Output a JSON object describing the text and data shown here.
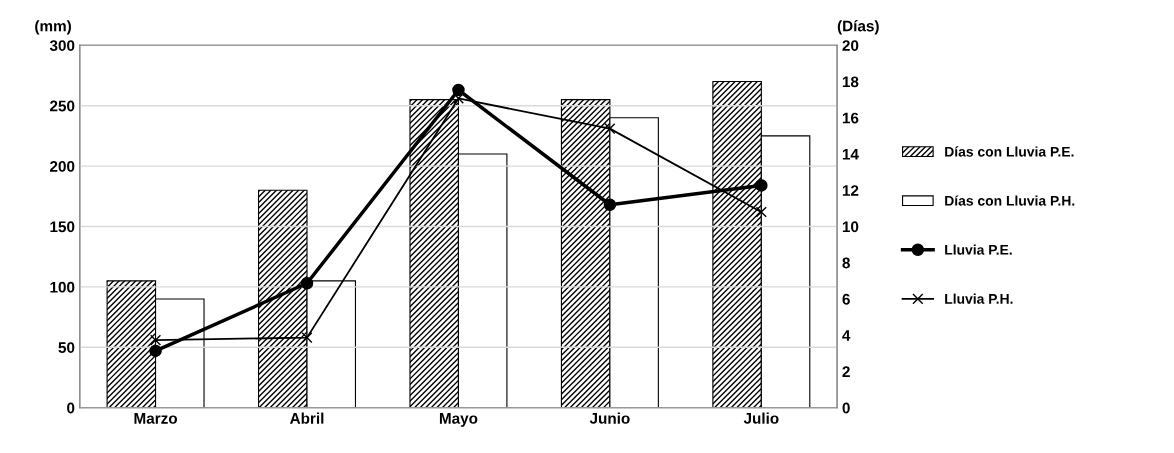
{
  "chart_data": {
    "type": "bar",
    "ylabel": "(mm)",
    "y2label": "(Días)",
    "categories": [
      "Marzo",
      "Abril",
      "Mayo",
      "Junio",
      "Julio"
    ],
    "series": [
      {
        "name": "Días con Lluvia P.E.",
        "axis": "y2",
        "color": "#000000",
        "values": [
          7,
          12,
          17,
          17,
          18
        ]
      },
      {
        "name": "Días con Lluvia P.H.",
        "axis": "y2",
        "color": "#ffffff",
        "values": [
          6,
          7,
          14,
          16,
          15
        ]
      },
      {
        "name": "Lluvia P.E.",
        "type": "line",
        "color": "#000000",
        "marker": "circle",
        "values": [
          47,
          103,
          263,
          168,
          184
        ]
      },
      {
        "name": "Lluvia P.H.",
        "type": "line",
        "color": "#000000",
        "marker": "cross",
        "values": [
          56,
          58,
          256,
          231,
          162
        ]
      }
    ],
    "ylim": [
      0,
      300
    ],
    "yticks": [
      0,
      50,
      100,
      150,
      200,
      250,
      300
    ],
    "y2lim": [
      0,
      20
    ],
    "y2ticks": [
      0,
      2,
      4,
      6,
      8,
      10,
      12,
      14,
      16,
      18,
      20
    ],
    "grid": "y",
    "legend": "right"
  }
}
